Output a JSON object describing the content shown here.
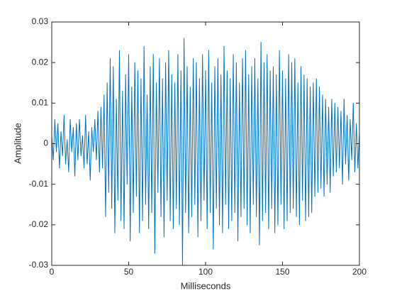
{
  "chart_data": {
    "type": "line",
    "xlabel": "Milliseconds",
    "ylabel": "Amplitude",
    "xlim": [
      0,
      200
    ],
    "ylim": [
      -0.03,
      0.03
    ],
    "xticks": [
      0,
      50,
      100,
      150,
      200
    ],
    "yticks": [
      -0.03,
      -0.02,
      -0.01,
      0,
      0.01,
      0.02,
      0.03
    ],
    "x": [
      0,
      1,
      2,
      3,
      4,
      5,
      6,
      7,
      8,
      9,
      10,
      11,
      12,
      13,
      14,
      15,
      16,
      17,
      18,
      19,
      20,
      21,
      22,
      23,
      24,
      25,
      26,
      27,
      28,
      29,
      30,
      31,
      32,
      33,
      34,
      35,
      36,
      37,
      38,
      39,
      40,
      41,
      42,
      43,
      44,
      45,
      46,
      47,
      48,
      49,
      50,
      51,
      52,
      53,
      54,
      55,
      56,
      57,
      58,
      59,
      60,
      61,
      62,
      63,
      64,
      65,
      66,
      67,
      68,
      69,
      70,
      71,
      72,
      73,
      74,
      75,
      76,
      77,
      78,
      79,
      80,
      81,
      82,
      83,
      84,
      85,
      86,
      87,
      88,
      89,
      90,
      91,
      92,
      93,
      94,
      95,
      96,
      97,
      98,
      99,
      100,
      101,
      102,
      103,
      104,
      105,
      106,
      107,
      108,
      109,
      110,
      111,
      112,
      113,
      114,
      115,
      116,
      117,
      118,
      119,
      120,
      121,
      122,
      123,
      124,
      125,
      126,
      127,
      128,
      129,
      130,
      131,
      132,
      133,
      134,
      135,
      136,
      137,
      138,
      139,
      140,
      141,
      142,
      143,
      144,
      145,
      146,
      147,
      148,
      149,
      150,
      151,
      152,
      153,
      154,
      155,
      156,
      157,
      158,
      159,
      160,
      161,
      162,
      163,
      164,
      165,
      166,
      167,
      168,
      169,
      170,
      171,
      172,
      173,
      174,
      175,
      176,
      177,
      178,
      179,
      180,
      181,
      182,
      183,
      184,
      185,
      186,
      187,
      188,
      189,
      190,
      191,
      192,
      193,
      194,
      195,
      196,
      197,
      198,
      199,
      200
    ],
    "series": [
      {
        "color": "#0072bd",
        "values": [
          0.002,
          -0.004,
          0.006,
          -0.002,
          0.005,
          -0.006,
          0.003,
          -0.003,
          0.007,
          -0.005,
          0.001,
          -0.007,
          0.006,
          -0.002,
          0.004,
          -0.008,
          0.005,
          -0.004,
          0.006,
          -0.003,
          0.002,
          -0.006,
          0.007,
          -0.005,
          0.003,
          -0.009,
          0.004,
          -0.002,
          0.006,
          -0.004,
          0.008,
          -0.007,
          0.009,
          -0.006,
          0.012,
          -0.018,
          0.015,
          -0.012,
          0.021,
          -0.016,
          0.019,
          -0.022,
          0.011,
          -0.014,
          0.023,
          -0.019,
          0.013,
          -0.021,
          0.017,
          -0.01,
          0.022,
          -0.024,
          0.014,
          -0.017,
          0.02,
          -0.013,
          0.018,
          -0.022,
          0.016,
          -0.019,
          0.024,
          -0.015,
          0.012,
          -0.021,
          0.019,
          -0.017,
          0.022,
          -0.027,
          0.015,
          -0.012,
          0.021,
          -0.018,
          0.016,
          -0.023,
          0.02,
          -0.014,
          0.023,
          -0.019,
          0.017,
          -0.021,
          0.015,
          -0.016,
          0.022,
          -0.02,
          0.018,
          -0.03,
          0.026,
          -0.017,
          0.019,
          -0.022,
          0.014,
          -0.018,
          0.021,
          -0.015,
          0.02,
          -0.023,
          0.016,
          -0.019,
          0.022,
          -0.014,
          0.018,
          -0.021,
          0.023,
          -0.017,
          0.015,
          -0.026,
          0.019,
          -0.016,
          0.021,
          -0.02,
          0.017,
          -0.022,
          0.024,
          -0.015,
          0.018,
          -0.021,
          0.016,
          -0.019,
          0.022,
          -0.017,
          0.02,
          -0.024,
          0.015,
          -0.018,
          0.021,
          -0.016,
          0.023,
          -0.02,
          0.017,
          -0.022,
          0.019,
          -0.015,
          0.021,
          -0.018,
          0.016,
          -0.025,
          0.025,
          -0.019,
          0.02,
          -0.017,
          0.022,
          -0.021,
          0.018,
          -0.016,
          0.019,
          -0.022,
          0.017,
          -0.02,
          0.023,
          -0.015,
          0.018,
          -0.021,
          0.016,
          -0.019,
          0.022,
          -0.017,
          0.02,
          -0.016,
          0.021,
          -0.018,
          0.015,
          -0.02,
          0.019,
          -0.014,
          0.017,
          -0.019,
          0.016,
          -0.018,
          0.014,
          -0.017,
          0.015,
          -0.013,
          0.016,
          -0.012,
          0.014,
          -0.011,
          0.012,
          -0.013,
          0.011,
          -0.01,
          0.009,
          -0.012,
          0.011,
          -0.008,
          0.01,
          -0.007,
          0.009,
          -0.006,
          0.008,
          -0.01,
          0.011,
          -0.005,
          0.007,
          -0.009,
          0.006,
          -0.004,
          0.01,
          -0.007,
          0.005,
          -0.006,
          0.003
        ]
      }
    ]
  }
}
